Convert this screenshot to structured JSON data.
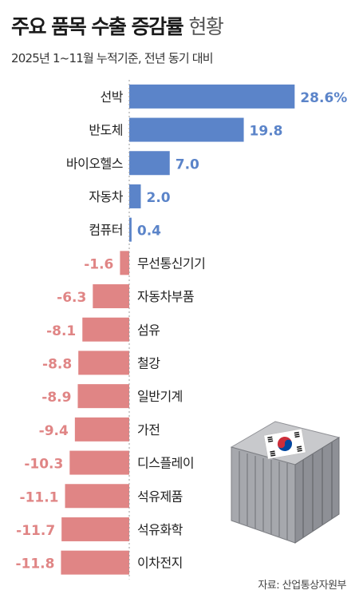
{
  "title": {
    "bold": "주요 품목 수출 증감률",
    "light": "현황"
  },
  "subtitle": "2025년 1~11월 누적기준, 전년 동기 대비",
  "source": "자료: 산업통상자원부",
  "colors": {
    "positive": "#5b84c9",
    "negative": "#e08585",
    "axis": "#999999",
    "text": "#222222"
  },
  "chart_data": {
    "type": "bar",
    "orientation": "horizontal",
    "categories": [
      "선박",
      "반도체",
      "바이오헬스",
      "자동차",
      "컴퓨터",
      "무선통신기기",
      "자동차부품",
      "섬유",
      "철강",
      "일반기계",
      "가전",
      "디스플레이",
      "석유제품",
      "석유화학",
      "이차전지"
    ],
    "values": [
      28.6,
      19.8,
      7.0,
      2.0,
      0.4,
      -1.6,
      -6.3,
      -8.1,
      -8.8,
      -8.9,
      -9.4,
      -10.3,
      -11.1,
      -11.7,
      -11.8
    ],
    "labels": [
      "28.6%",
      "19.8",
      "7.0",
      "2.0",
      "0.4",
      "-1.6",
      "-6.3",
      "-8.1",
      "-8.8",
      "-8.9",
      "-9.4",
      "-10.3",
      "-11.1",
      "-11.7",
      "-11.8"
    ],
    "unit": "%"
  }
}
